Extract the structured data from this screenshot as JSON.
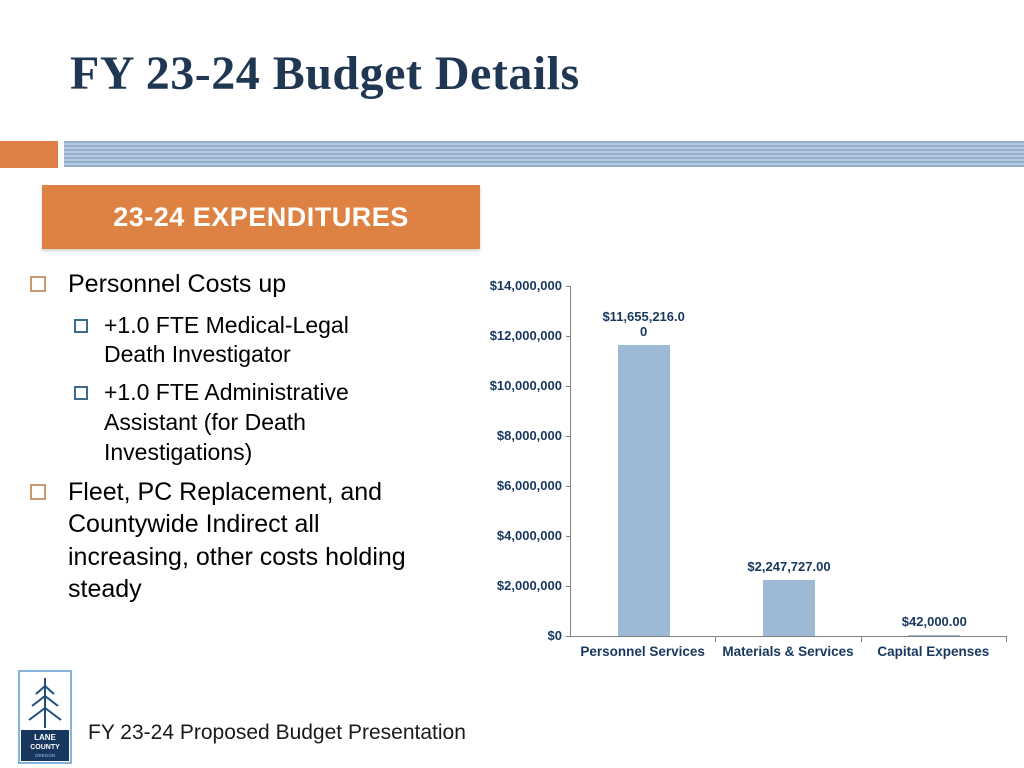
{
  "slide": {
    "title": "FY 23-24 Budget Details",
    "section_header": "23-24 EXPENDITURES",
    "footer": "FY 23-24 Proposed Budget Presentation",
    "logo": {
      "line1": "LANE",
      "line2": "COUNTY",
      "line3": "OREGON"
    }
  },
  "bullets": [
    {
      "level": 1,
      "text": "Personnel Costs up"
    },
    {
      "level": 2,
      "text": "+1.0 FTE Medical-Legal Death Investigator"
    },
    {
      "level": 2,
      "text": "+1.0 FTE Administrative Assistant (for Death Investigations)"
    },
    {
      "level": 1,
      "text": "Fleet, PC Replacement, and Countywide Indirect all increasing, other costs holding steady"
    }
  ],
  "colors": {
    "accent_orange": "#de8244",
    "band_blue": "#a9c0d8",
    "title_navy": "#1f3752",
    "chart_text_navy": "#17375e",
    "bar_fill": "#9cb9d6"
  },
  "chart_data": {
    "type": "bar",
    "title": "",
    "xlabel": "",
    "ylabel": "",
    "categories": [
      "Personnel Services",
      "Materials & Services",
      "Capital Expenses"
    ],
    "values": [
      11655216,
      2247727,
      42000
    ],
    "value_labels": [
      [
        "$11,655,216.0",
        "0"
      ],
      [
        "$2,247,727.00"
      ],
      [
        "$42,000.00"
      ]
    ],
    "y_ticks": [
      "$14,000,000",
      "$12,000,000",
      "$10,000,000",
      "$8,000,000",
      "$6,000,000",
      "$4,000,000",
      "$2,000,000",
      "$0"
    ],
    "ylim": [
      0,
      14000000
    ],
    "grid": false,
    "legend": "none"
  }
}
